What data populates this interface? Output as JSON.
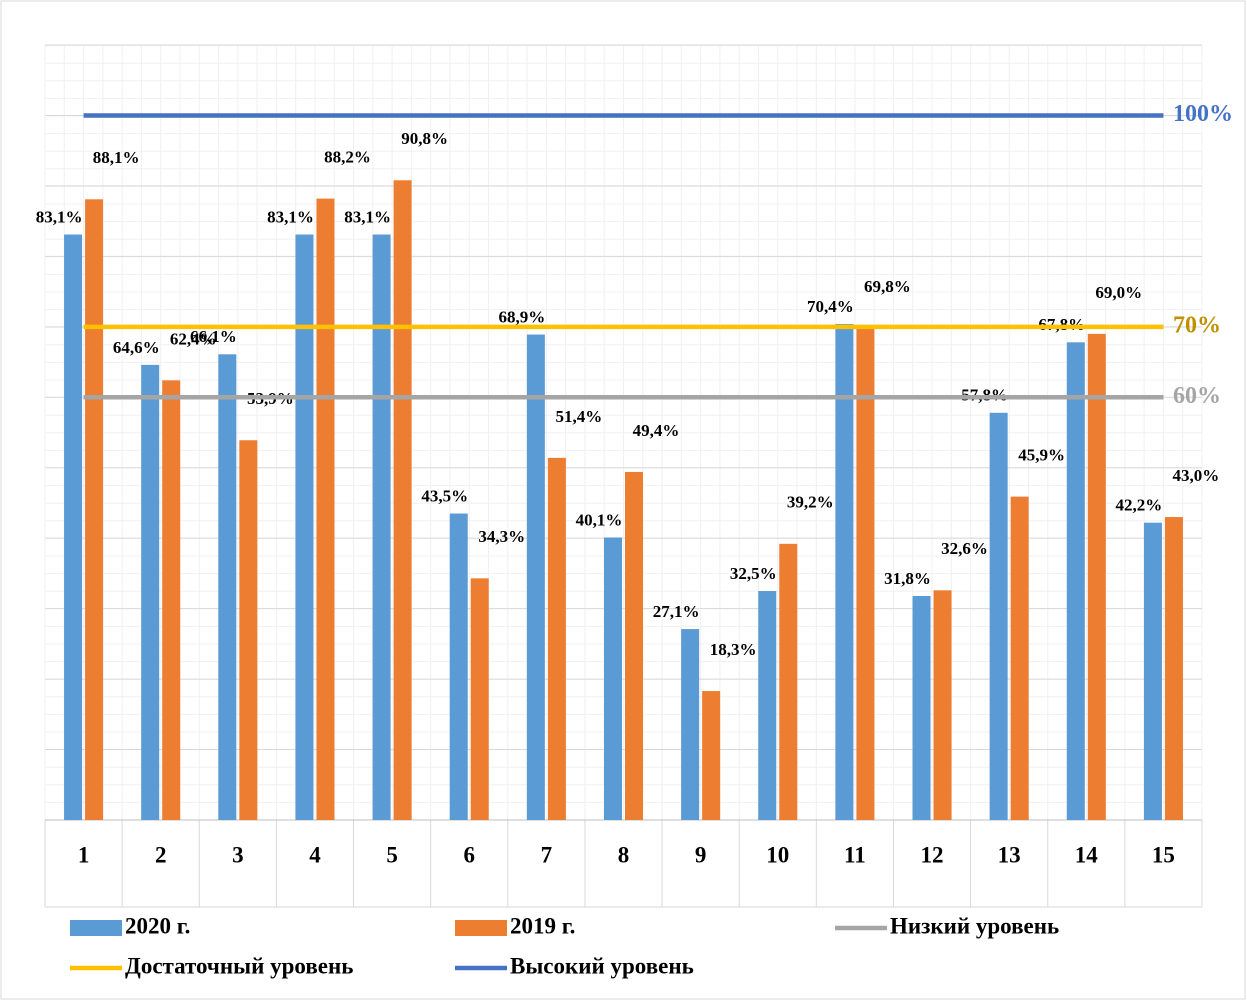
{
  "chart_data": {
    "type": "bar",
    "categories": [
      "1",
      "2",
      "3",
      "4",
      "5",
      "6",
      "7",
      "8",
      "9",
      "10",
      "11",
      "12",
      "13",
      "14",
      "15"
    ],
    "ylim": [
      0,
      110
    ],
    "yticks": [
      0,
      10,
      20,
      30,
      40,
      50,
      60,
      70,
      80,
      90,
      100,
      110
    ],
    "grid": true,
    "legend": "bottom",
    "series": [
      {
        "name": "2020 г.",
        "color": "#5b9bd5",
        "type": "bar",
        "values": [
          83.1,
          64.6,
          66.1,
          83.1,
          83.1,
          43.5,
          68.9,
          40.1,
          27.1,
          32.5,
          70.4,
          31.8,
          57.8,
          67.8,
          42.2
        ],
        "value_labels": [
          "83,1%",
          "64,6%",
          "66,1%",
          "83,1%",
          "83,1%",
          "43,5%",
          "68,9%",
          "40,1%",
          "27,1%",
          "32,5%",
          "70,4%",
          "31,8%",
          "57,8%",
          "67,8%",
          "42,2%"
        ]
      },
      {
        "name": "2019 г.",
        "color": "#ed7d31",
        "type": "bar",
        "values": [
          88.1,
          62.4,
          53.9,
          88.2,
          90.8,
          34.3,
          51.4,
          49.4,
          18.3,
          39.2,
          69.8,
          32.6,
          45.9,
          69.0,
          43.0
        ],
        "value_labels": [
          "88,1%",
          "62,4%",
          "53,9%",
          "88,2%",
          "90,8%",
          "34,3%",
          "51,4%",
          "49,4%",
          "18,3%",
          "39,2%",
          "69,8%",
          "32,6%",
          "45,9%",
          "69,0%",
          "43,0%"
        ]
      },
      {
        "name": "Низкий уровень",
        "color": "#a5a5a5",
        "type": "line",
        "label_color": "#a5a5a5",
        "values": [
          60,
          60,
          60,
          60,
          60,
          60,
          60,
          60,
          60,
          60,
          60,
          60,
          60,
          60,
          60
        ],
        "end_label": "60%"
      },
      {
        "name": "Достаточный уровень",
        "color": "#ffc000",
        "type": "line",
        "label_color": "#bf9000",
        "values": [
          70,
          70,
          70,
          70,
          70,
          70,
          70,
          70,
          70,
          70,
          70,
          70,
          70,
          70,
          70
        ],
        "end_label": "70%"
      },
      {
        "name": "Высокий уровень",
        "color": "#4472c4",
        "type": "line",
        "label_color": "#4472c4",
        "values": [
          100,
          100,
          100,
          100,
          100,
          100,
          100,
          100,
          100,
          100,
          100,
          100,
          100,
          100,
          100
        ],
        "end_label": "100%"
      }
    ]
  }
}
